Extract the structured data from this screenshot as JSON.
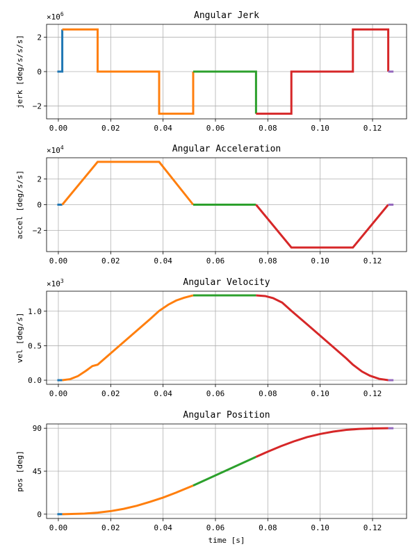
{
  "chart_data": [
    {
      "type": "line",
      "title": "Angular Jerk",
      "ylabel": "jerk [deg/s/s/s]",
      "xlabel": "",
      "multiplier_base": "×10",
      "multiplier_exp": "6",
      "scale": 1000000,
      "xlim": [
        -0.0045,
        0.133
      ],
      "ylim": [
        -2.75,
        2.75
      ],
      "xticks": [
        0.0,
        0.02,
        0.04,
        0.06,
        0.08,
        0.1,
        0.12
      ],
      "xtick_labels": [
        "0.00",
        "0.02",
        "0.04",
        "0.06",
        "0.08",
        "0.10",
        "0.12"
      ],
      "yticks": [
        -2,
        0,
        2
      ],
      "ytick_labels": [
        "−2",
        "0",
        "2"
      ],
      "grid": true,
      "series": [
        {
          "color": "#1f77b4",
          "points": [
            [
              -0.0004,
              0
            ],
            [
              0.0015,
              0
            ],
            [
              0.0015,
              2.45
            ]
          ]
        },
        {
          "color": "#ff7f0e",
          "points": [
            [
              0.0015,
              2.45
            ],
            [
              0.015,
              2.45
            ],
            [
              0.015,
              0
            ],
            [
              0.0385,
              0
            ],
            [
              0.0385,
              -2.45
            ],
            [
              0.0515,
              -2.45
            ],
            [
              0.0515,
              0
            ]
          ]
        },
        {
          "color": "#2ca02c",
          "points": [
            [
              0.0515,
              0
            ],
            [
              0.0755,
              0
            ],
            [
              0.0755,
              -2.45
            ]
          ]
        },
        {
          "color": "#d62728",
          "points": [
            [
              0.0755,
              -2.45
            ],
            [
              0.089,
              -2.45
            ],
            [
              0.089,
              0
            ],
            [
              0.1125,
              0
            ],
            [
              0.1125,
              2.45
            ],
            [
              0.126,
              2.45
            ],
            [
              0.126,
              0
            ]
          ]
        },
        {
          "color": "#9467bd",
          "points": [
            [
              0.126,
              0
            ],
            [
              0.128,
              0
            ]
          ]
        }
      ]
    },
    {
      "type": "line",
      "title": "Angular Acceleration",
      "ylabel": "accel [deg/s/s]",
      "xlabel": "",
      "multiplier_base": "×10",
      "multiplier_exp": "4",
      "scale": 10000,
      "xlim": [
        -0.0045,
        0.133
      ],
      "ylim": [
        -3.65,
        3.65
      ],
      "xticks": [
        0.0,
        0.02,
        0.04,
        0.06,
        0.08,
        0.1,
        0.12
      ],
      "xtick_labels": [
        "0.00",
        "0.02",
        "0.04",
        "0.06",
        "0.08",
        "0.10",
        "0.12"
      ],
      "yticks": [
        -2,
        0,
        2
      ],
      "ytick_labels": [
        "−2",
        "0",
        "2"
      ],
      "grid": true,
      "series": [
        {
          "color": "#1f77b4",
          "points": [
            [
              -0.0004,
              0
            ],
            [
              0.0015,
              0
            ]
          ]
        },
        {
          "color": "#ff7f0e",
          "points": [
            [
              0.0015,
              0
            ],
            [
              0.015,
              3.33
            ],
            [
              0.0385,
              3.33
            ],
            [
              0.0515,
              0
            ]
          ]
        },
        {
          "color": "#2ca02c",
          "points": [
            [
              0.0515,
              0
            ],
            [
              0.0755,
              0
            ]
          ]
        },
        {
          "color": "#d62728",
          "points": [
            [
              0.0755,
              0
            ],
            [
              0.089,
              -3.33
            ],
            [
              0.1125,
              -3.33
            ],
            [
              0.126,
              0
            ]
          ]
        },
        {
          "color": "#9467bd",
          "points": [
            [
              0.126,
              0
            ],
            [
              0.128,
              0
            ]
          ]
        }
      ]
    },
    {
      "type": "line",
      "title": "Angular Velocity",
      "ylabel": "vel [deg/s]",
      "xlabel": "",
      "multiplier_base": "×10",
      "multiplier_exp": "3",
      "scale": 1000,
      "xlim": [
        -0.0045,
        0.133
      ],
      "ylim": [
        -0.06,
        1.29
      ],
      "xticks": [
        0.0,
        0.02,
        0.04,
        0.06,
        0.08,
        0.1,
        0.12
      ],
      "xtick_labels": [
        "0.00",
        "0.02",
        "0.04",
        "0.06",
        "0.08",
        "0.10",
        "0.12"
      ],
      "yticks": [
        0.0,
        0.5,
        1.0
      ],
      "ytick_labels": [
        "0.0",
        "0.5",
        "1.0"
      ],
      "grid": true,
      "series": [
        {
          "color": "#1f77b4",
          "points": [
            [
              -0.0004,
              0
            ],
            [
              0.0015,
              0
            ]
          ]
        },
        {
          "color": "#ff7f0e",
          "points": [
            [
              0.0015,
              0
            ],
            [
              0.0045,
              0.015
            ],
            [
              0.0075,
              0.06
            ],
            [
              0.0105,
              0.135
            ],
            [
              0.013,
              0.205
            ],
            [
              0.015,
              0.225
            ],
            [
              0.02,
              0.39
            ],
            [
              0.025,
              0.555
            ],
            [
              0.03,
              0.72
            ],
            [
              0.035,
              0.885
            ],
            [
              0.0385,
              1.005
            ],
            [
              0.042,
              1.095
            ],
            [
              0.045,
              1.155
            ],
            [
              0.048,
              1.195
            ],
            [
              0.0515,
              1.23
            ]
          ]
        },
        {
          "color": "#2ca02c",
          "points": [
            [
              0.0515,
              1.23
            ],
            [
              0.0755,
              1.23
            ]
          ]
        },
        {
          "color": "#d62728",
          "points": [
            [
              0.0755,
              1.23
            ],
            [
              0.079,
              1.22
            ],
            [
              0.082,
              1.19
            ],
            [
              0.0855,
              1.125
            ],
            [
              0.089,
              1.005
            ],
            [
              0.095,
              0.81
            ],
            [
              0.1,
              0.645
            ],
            [
              0.105,
              0.48
            ],
            [
              0.11,
              0.315
            ],
            [
              0.1125,
              0.225
            ],
            [
              0.116,
              0.125
            ],
            [
              0.119,
              0.065
            ],
            [
              0.1225,
              0.02
            ],
            [
              0.126,
              0
            ]
          ]
        },
        {
          "color": "#9467bd",
          "points": [
            [
              0.126,
              0
            ],
            [
              0.128,
              0
            ]
          ]
        }
      ]
    },
    {
      "type": "line",
      "title": "Angular Position",
      "ylabel": "pos [deg]",
      "xlabel": "time [s]",
      "multiplier_base": "",
      "multiplier_exp": "",
      "scale": 1,
      "xlim": [
        -0.0045,
        0.133
      ],
      "ylim": [
        -4.5,
        94.5
      ],
      "xticks": [
        0.0,
        0.02,
        0.04,
        0.06,
        0.08,
        0.1,
        0.12
      ],
      "xtick_labels": [
        "0.00",
        "0.02",
        "0.04",
        "0.06",
        "0.08",
        "0.10",
        "0.12"
      ],
      "yticks": [
        0,
        45,
        90
      ],
      "ytick_labels": [
        "0",
        "45",
        "90"
      ],
      "grid": true,
      "series": [
        {
          "color": "#1f77b4",
          "points": [
            [
              -0.0004,
              0
            ],
            [
              0.0015,
              0
            ]
          ]
        },
        {
          "color": "#ff7f0e",
          "points": [
            [
              0.0015,
              0
            ],
            [
              0.01,
              0.6
            ],
            [
              0.015,
              1.6
            ],
            [
              0.02,
              3.2
            ],
            [
              0.025,
              5.6
            ],
            [
              0.03,
              8.8
            ],
            [
              0.035,
              12.9
            ],
            [
              0.04,
              17.4
            ],
            [
              0.045,
              22.6
            ],
            [
              0.0515,
              30.0
            ]
          ]
        },
        {
          "color": "#2ca02c",
          "points": [
            [
              0.0515,
              30.0
            ],
            [
              0.0755,
              60.0
            ]
          ]
        },
        {
          "color": "#d62728",
          "points": [
            [
              0.0755,
              60.0
            ],
            [
              0.08,
              65.5
            ],
            [
              0.085,
              71.2
            ],
            [
              0.09,
              76.3
            ],
            [
              0.095,
              80.7
            ],
            [
              0.1,
              84.0
            ],
            [
              0.105,
              86.5
            ],
            [
              0.11,
              88.3
            ],
            [
              0.115,
              89.3
            ],
            [
              0.12,
              89.8
            ],
            [
              0.126,
              90.0
            ]
          ]
        },
        {
          "color": "#9467bd",
          "points": [
            [
              0.126,
              90.0
            ],
            [
              0.128,
              90.0
            ]
          ]
        }
      ]
    }
  ]
}
